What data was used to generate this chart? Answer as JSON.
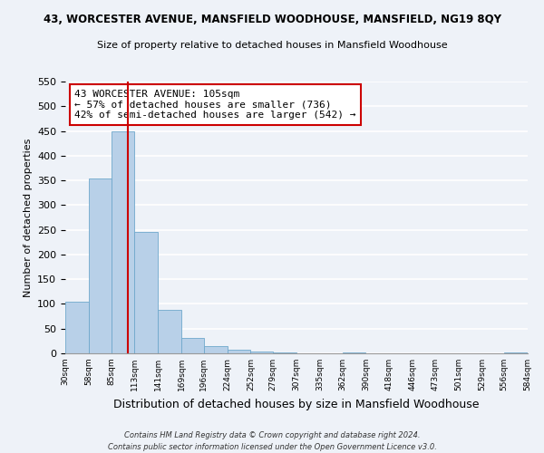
{
  "title": "43, WORCESTER AVENUE, MANSFIELD WOODHOUSE, MANSFIELD, NG19 8QY",
  "subtitle": "Size of property relative to detached houses in Mansfield Woodhouse",
  "xlabel": "Distribution of detached houses by size in Mansfield Woodhouse",
  "ylabel": "Number of detached properties",
  "bar_edges": [
    30,
    58,
    85,
    113,
    141,
    169,
    196,
    224,
    252,
    279,
    307,
    335,
    362,
    390,
    418,
    446,
    473,
    501,
    529,
    556,
    584
  ],
  "bar_heights": [
    104,
    353,
    450,
    245,
    88,
    31,
    15,
    7,
    3,
    1,
    0,
    0,
    2,
    0,
    0,
    0,
    0,
    0,
    0,
    2
  ],
  "bar_color": "#b8d0e8",
  "bar_edge_color": "#6fa8cc",
  "vline_x": 105,
  "vline_color": "#cc0000",
  "ylim": [
    0,
    550
  ],
  "annotation_line1": "43 WORCESTER AVENUE: 105sqm",
  "annotation_line2": "← 57% of detached houses are smaller (736)",
  "annotation_line3": "42% of semi-detached houses are larger (542) →",
  "footer_line1": "Contains HM Land Registry data © Crown copyright and database right 2024.",
  "footer_line2": "Contains public sector information licensed under the Open Government Licence v3.0.",
  "tick_labels": [
    "30sqm",
    "58sqm",
    "85sqm",
    "113sqm",
    "141sqm",
    "169sqm",
    "196sqm",
    "224sqm",
    "252sqm",
    "279sqm",
    "307sqm",
    "335sqm",
    "362sqm",
    "390sqm",
    "418sqm",
    "446sqm",
    "473sqm",
    "501sqm",
    "529sqm",
    "556sqm",
    "584sqm"
  ],
  "background_color": "#eef2f8",
  "grid_color": "#ffffff"
}
